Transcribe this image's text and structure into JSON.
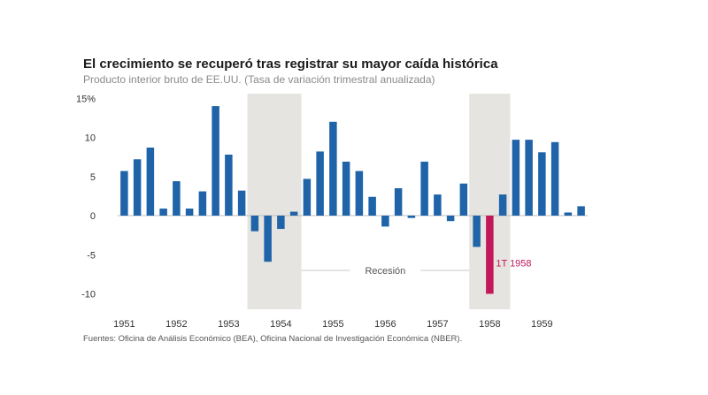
{
  "title": "El crecimiento se recuperó tras registrar su mayor caída histórica",
  "subtitle": "Producto interior bruto de EE.UU. (Tasa de variación trimestral anualizada)",
  "source": "Fuentes: Oficina de Análisis Económico (BEA), Oficina Nacional de Investigación Económica (NBER).",
  "colors": {
    "bar": "#1f63a8",
    "highlight": "#c2185b",
    "recession_band": "#e6e4e0",
    "zero_line": "#bdbdbd",
    "text": "#333333"
  },
  "chart_data": {
    "type": "bar",
    "title": "El crecimiento se recuperó tras registrar su mayor caída histórica",
    "subtitle": "Producto interior bruto de EE.UU. (Tasa de variación trimestral anualizada)",
    "xlabel": "",
    "ylabel": "",
    "ylim": [
      -12,
      15
    ],
    "yticks": [
      15,
      10,
      5,
      0,
      -5,
      -10
    ],
    "ytick_labels": [
      "15%",
      "10",
      "5",
      "0",
      "-5",
      "-10"
    ],
    "years": [
      "1951",
      "1952",
      "1953",
      "1954",
      "1955",
      "1956",
      "1957",
      "1958",
      "1959"
    ],
    "quarters": [
      "1951Q1",
      "1951Q2",
      "1951Q3",
      "1951Q4",
      "1952Q1",
      "1952Q2",
      "1952Q3",
      "1952Q4",
      "1953Q1",
      "1953Q2",
      "1953Q3",
      "1953Q4",
      "1954Q1",
      "1954Q2",
      "1954Q3",
      "1954Q4",
      "1955Q1",
      "1955Q2",
      "1955Q3",
      "1955Q4",
      "1956Q1",
      "1956Q2",
      "1956Q3",
      "1956Q4",
      "1957Q1",
      "1957Q2",
      "1957Q3",
      "1957Q4",
      "1958Q1",
      "1958Q2",
      "1958Q3",
      "1958Q4",
      "1959Q1",
      "1959Q2",
      "1959Q3",
      "1959Q4"
    ],
    "values": [
      5.7,
      7.2,
      8.7,
      0.9,
      4.4,
      0.9,
      3.1,
      14.0,
      7.8,
      3.2,
      -2.0,
      -5.9,
      -1.7,
      0.5,
      4.7,
      8.2,
      12.0,
      6.9,
      5.7,
      2.4,
      -1.4,
      3.5,
      -0.3,
      6.9,
      2.7,
      -0.7,
      4.1,
      -4.0,
      -10.0,
      2.7,
      9.7,
      9.7,
      8.1,
      9.4,
      0.4,
      1.2
    ],
    "highlight_index": 28,
    "highlight_label": "1T 1958",
    "recessions": [
      {
        "start": "1953Q3",
        "end": "1954Q2"
      },
      {
        "start": "1957Q4",
        "end": "1958Q2"
      }
    ],
    "recession_label": "Recesión",
    "grid": false,
    "legend": "none"
  }
}
